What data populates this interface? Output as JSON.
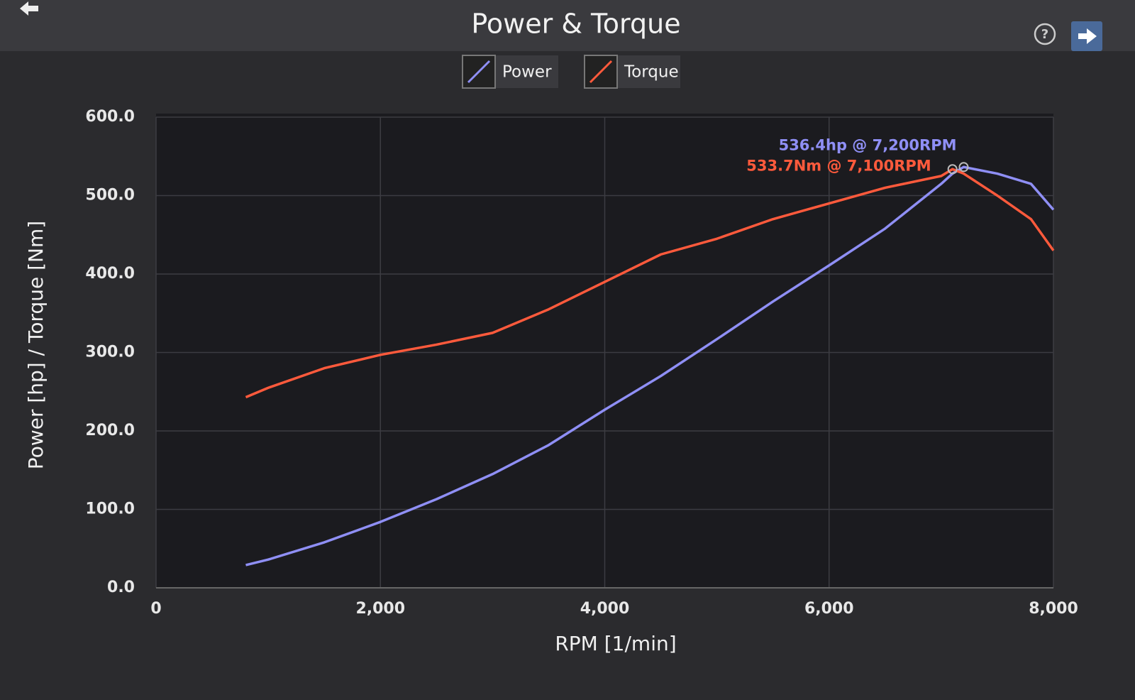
{
  "chart_data": {
    "type": "line",
    "title": "Power & Torque",
    "x_label": "RPM [1/min]",
    "y_label": "Power [hp] / Torque [Nm]",
    "x": [
      800,
      1000,
      1500,
      2000,
      2500,
      3000,
      3500,
      4000,
      4500,
      5000,
      5500,
      6000,
      6500,
      7000,
      7100,
      7200,
      7500,
      7800,
      8000
    ],
    "series": [
      {
        "name": "Power",
        "color": "#8f8ff5",
        "values": [
          29,
          36,
          58,
          84,
          113,
          145,
          182,
          227,
          270,
          317,
          365,
          411,
          458,
          515,
          528,
          536.4,
          528,
          515,
          482
        ]
      },
      {
        "name": "Torque",
        "color": "#ff5a3c",
        "values": [
          243,
          255,
          280,
          297,
          310,
          325,
          355,
          390,
          425,
          445,
          470,
          490,
          510,
          525,
          533.7,
          528,
          500,
          470,
          430
        ]
      }
    ],
    "annotations": [
      "536.4hp @ 7,200RPM",
      "533.7Nm @ 7,100RPM"
    ],
    "xlim": [
      0,
      8000
    ],
    "xticks": [
      0,
      {
        "value": 2000,
        "label": "2,000"
      },
      {
        "value": 4000,
        "label": "4,000"
      },
      {
        "value": 6000,
        "label": "6,000"
      },
      {
        "value": 8000,
        "label": "8,000"
      }
    ],
    "ylim": [
      0,
      600
    ],
    "yticks": [
      {
        "value": 0,
        "label": "0.0"
      },
      {
        "value": 100,
        "label": "100.0"
      },
      {
        "value": 200,
        "label": "200.0"
      },
      {
        "value": 300,
        "label": "300.0"
      },
      {
        "value": 400,
        "label": "400.0"
      },
      {
        "value": 500,
        "label": "500.0"
      },
      {
        "value": 600,
        "label": "600.0"
      }
    ],
    "grid": true
  }
}
